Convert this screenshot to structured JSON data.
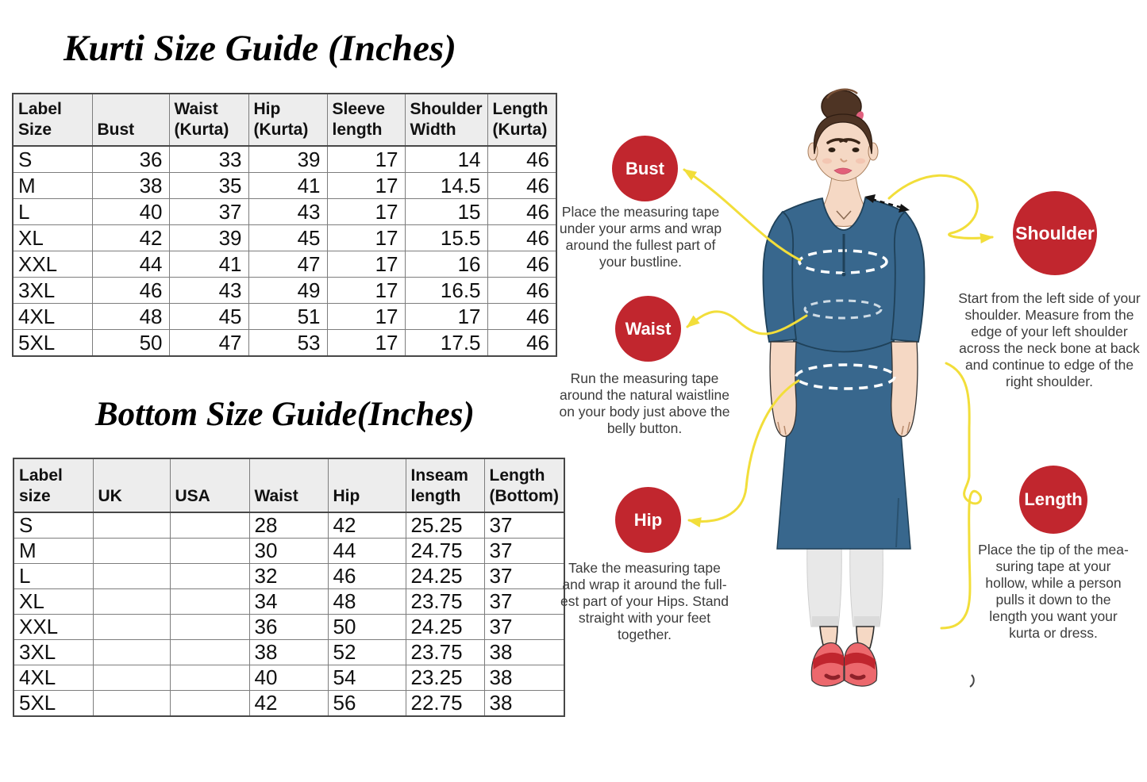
{
  "kurti_table": {
    "title": "Kurti Size Guide (Inches)",
    "headers": [
      "Label\nSize",
      "Bust",
      "Waist\n(Kurta)",
      "Hip\n(Kurta)",
      "Sleeve\nlength",
      "Shoulder\nWidth",
      "Length\n(Kurta)"
    ],
    "rows": [
      [
        "S",
        "36",
        "33",
        "39",
        "17",
        "14",
        "46"
      ],
      [
        "M",
        "38",
        "35",
        "41",
        "17",
        "14.5",
        "46"
      ],
      [
        "L",
        "40",
        "37",
        "43",
        "17",
        "15",
        "46"
      ],
      [
        "XL",
        "42",
        "39",
        "45",
        "17",
        "15.5",
        "46"
      ],
      [
        "XXL",
        "44",
        "41",
        "47",
        "17",
        "16",
        "46"
      ],
      [
        "3XL",
        "46",
        "43",
        "49",
        "17",
        "16.5",
        "46"
      ],
      [
        "4XL",
        "48",
        "45",
        "51",
        "17",
        "17",
        "46"
      ],
      [
        "5XL",
        "50",
        "47",
        "53",
        "17",
        "17.5",
        "46"
      ]
    ]
  },
  "bottom_table": {
    "title": "Bottom Size Guide(Inches)",
    "headers": [
      "Label size",
      "UK",
      "USA",
      "Waist",
      "Hip",
      "Inseam\nlength",
      "Length\n(Bottom)"
    ],
    "rows": [
      [
        "S",
        "",
        "",
        "28",
        "42",
        "25.25",
        "37"
      ],
      [
        "M",
        "",
        "",
        "30",
        "44",
        "24.75",
        "37"
      ],
      [
        "L",
        "",
        "",
        "32",
        "46",
        "24.25",
        "37"
      ],
      [
        "XL",
        "",
        "",
        "34",
        "48",
        "23.75",
        "37"
      ],
      [
        "XXL",
        "",
        "",
        "36",
        "50",
        "24.25",
        "37"
      ],
      [
        "3XL",
        "",
        "",
        "38",
        "52",
        "23.75",
        "38"
      ],
      [
        "4XL",
        "",
        "",
        "40",
        "54",
        "23.25",
        "38"
      ],
      [
        "5XL",
        "",
        "",
        "42",
        "56",
        "22.75",
        "38"
      ]
    ]
  },
  "annotations": {
    "bust": {
      "label": "Bust",
      "text": "Place the measuring tape\nunder your arms and wrap\naround the fullest part of\nyour bustline."
    },
    "waist": {
      "label": "Waist",
      "text": "Run the measuring tape\naround the natural waistline\non your body just above the\nbelly button."
    },
    "hip": {
      "label": "Hip",
      "text": "Take the measuring tape\nand wrap it around the full-\nest part of your Hips. Stand\nstraight with your feet\ntogether."
    },
    "shoulder": {
      "label": "Shoulder",
      "text": "Start from the left side of your\nshoulder. Measure from the\nedge of your left shoulder\nacross the neck bone at back\nand continue to edge of the\nright shoulder."
    },
    "length": {
      "label": "Length",
      "text": "Place the tip of the mea-\nsuring tape at your\nhollow, while a person\npulls it down to the\nlength you want your\nkurta or dress."
    }
  },
  "colors": {
    "badge_red": "#c1262e",
    "guide_line_yellow": "#f2de3a",
    "kurti_blue": "#38678d",
    "table_header_gray": "#ededed"
  }
}
